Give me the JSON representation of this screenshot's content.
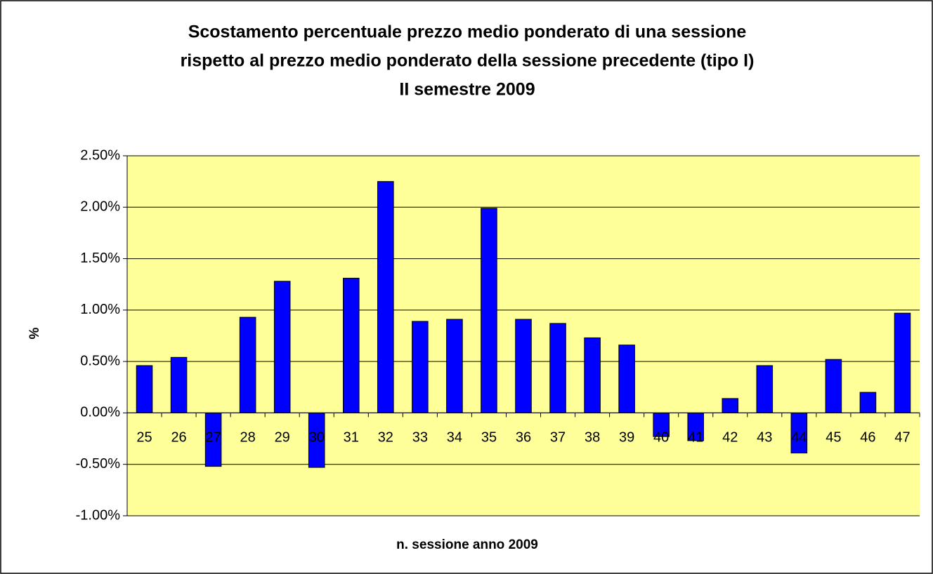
{
  "chart_data": {
    "type": "bar",
    "title": [
      "Scostamento percentuale prezzo medio ponderato di una sessione",
      "rispetto al prezzo medio ponderato della sessione precedente (tipo I)",
      "II semestre 2009"
    ],
    "xlabel": "n. sessione anno 2009",
    "ylabel": "%",
    "categories": [
      "25",
      "26",
      "27",
      "28",
      "29",
      "30",
      "31",
      "32",
      "33",
      "34",
      "35",
      "36",
      "37",
      "38",
      "39",
      "40",
      "41",
      "42",
      "43",
      "44",
      "45",
      "46",
      "47"
    ],
    "values": [
      0.46,
      0.54,
      -0.52,
      0.93,
      1.28,
      -0.53,
      1.31,
      2.25,
      0.89,
      0.91,
      1.99,
      0.91,
      0.87,
      0.73,
      0.66,
      -0.23,
      -0.27,
      0.14,
      0.46,
      -0.39,
      0.52,
      0.2,
      0.97
    ],
    "color": "#0000ff",
    "ylim": [
      -1,
      2.5
    ],
    "yticks": [
      {
        "value": -1,
        "label": "-1.00%"
      },
      {
        "value": -0.5,
        "label": "-0.50%"
      },
      {
        "value": 0,
        "label": "0.00%"
      },
      {
        "value": 0.5,
        "label": "0.50%"
      },
      {
        "value": 1,
        "label": "1.00%"
      },
      {
        "value": 1.5,
        "label": "1.50%"
      },
      {
        "value": 2,
        "label": "2.00%"
      },
      {
        "value": 2.5,
        "label": "2.50%"
      }
    ],
    "grid": true,
    "plot_background": "#ffff99"
  }
}
